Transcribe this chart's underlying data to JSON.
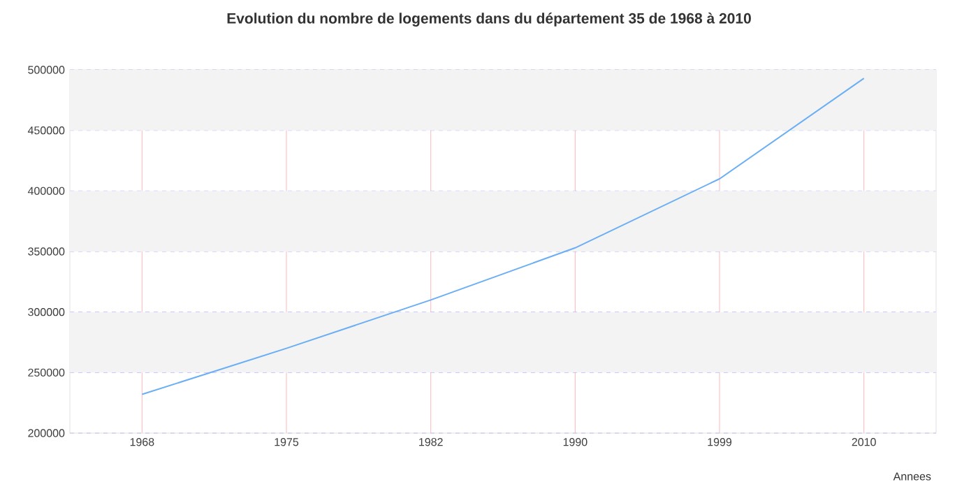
{
  "chart_data": {
    "type": "line",
    "title": "Evolution du nombre de logements dans du département 35 de 1968 à 2010",
    "xlabel": "Annees",
    "categories": [
      "1968",
      "1975",
      "1982",
      "1990",
      "1999",
      "2010"
    ],
    "series": [
      {
        "color": "#6aaef5",
        "values": [
          232000,
          270000,
          310000,
          353000,
          410000,
          493000
        ]
      }
    ],
    "ylim": [
      200000,
      500000
    ],
    "yticks": [
      200000,
      250000,
      300000,
      350000,
      400000,
      450000,
      500000
    ],
    "bands": [
      {
        "axis": "y",
        "from": 250000,
        "to": 300000,
        "color": "#f3f3f3"
      },
      {
        "axis": "y",
        "from": 350000,
        "to": 400000,
        "color": "#f3f3f3"
      },
      {
        "axis": "y",
        "from": 450000,
        "to": 500000,
        "color": "#f3f3f3"
      }
    ],
    "grid": true,
    "marker": "none",
    "line_style": "solid"
  }
}
